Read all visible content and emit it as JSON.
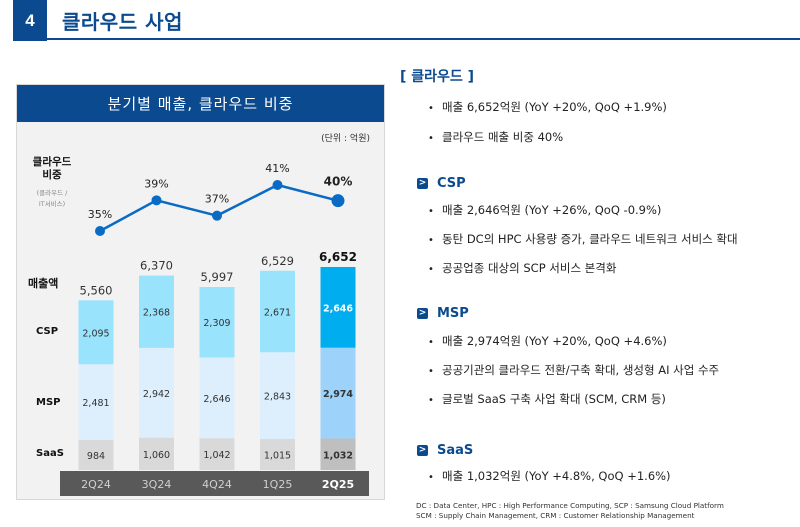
{
  "header": {
    "section_number": "4",
    "title": "클라우드 사업"
  },
  "panel": {
    "title": "분기별 매출, 클라우드 비중",
    "unit": "(단위 : 억원)",
    "ratio_label_line1": "클라우드",
    "ratio_label_line2": "비중",
    "ratio_sub_line1": "(클라우드 /",
    "ratio_sub_line2": "IT서비스)",
    "revenue_label": "매출액",
    "segment_labels": {
      "csp": "CSP",
      "msp": "MSP",
      "saas": "SaaS"
    }
  },
  "chart_data": [
    {
      "type": "line",
      "title": "클라우드 비중 (클라우드 / IT서비스)",
      "categories": [
        "2Q24",
        "3Q24",
        "4Q24",
        "1Q25",
        "2Q25"
      ],
      "values": [
        35,
        39,
        37,
        41,
        40
      ],
      "labels": [
        "35%",
        "39%",
        "37%",
        "41%",
        "40%"
      ],
      "unit": "%",
      "color": "#0a6bc4",
      "highlight_index": 4
    },
    {
      "type": "bar",
      "stacked": true,
      "title": "분기별 매출",
      "unit": "억원",
      "categories": [
        "2Q24",
        "3Q24",
        "4Q24",
        "1Q25",
        "2Q25"
      ],
      "series": [
        {
          "name": "SaaS",
          "values": [
            984,
            1060,
            1042,
            1015,
            1032
          ],
          "labels": [
            "984",
            "1,060",
            "1,042",
            "1,015",
            "1,032"
          ],
          "color": "#d9d9d9",
          "highlight_color": "#bfbfbf"
        },
        {
          "name": "MSP",
          "values": [
            2481,
            2942,
            2646,
            2843,
            2974
          ],
          "labels": [
            "2,481",
            "2,942",
            "2,646",
            "2,843",
            "2,974"
          ],
          "color": "#ddeffd",
          "highlight_color": "#9dd3fb"
        },
        {
          "name": "CSP",
          "values": [
            2095,
            2368,
            2309,
            2671,
            2646
          ],
          "labels": [
            "2,095",
            "2,368",
            "2,309",
            "2,671",
            "2,646"
          ],
          "color": "#99e3fd",
          "highlight_color": "#00aeef"
        }
      ],
      "totals": [
        5560,
        6370,
        5997,
        6529,
        6652
      ],
      "total_labels": [
        "5,560",
        "6,370",
        "5,997",
        "6,529",
        "6,652"
      ],
      "highlight_index": 4,
      "axis_bar_color": "#595959"
    }
  ],
  "summary": {
    "cloud_title": "[ 클라우드 ]",
    "cloud_bullets": [
      "매출 6,652억원 (YoY +20%, QoQ +1.9%)",
      "클라우드 매출 비중 40%"
    ],
    "sections": [
      {
        "title": "CSP",
        "bullets": [
          "매출 2,646억원 (YoY +26%, QoQ -0.9%)",
          "동탄 DC의 HPC 사용량 증가, 클라우드 네트워크 서비스 확대",
          "공공업종 대상의 SCP 서비스 본격화"
        ]
      },
      {
        "title": "MSP",
        "bullets": [
          "매출 2,974억원 (YoY +20%, QoQ +4.6%)",
          "공공기관의 클라우드 전환/구축 확대, 생성형 AI 사업 수주",
          "글로벌 SaaS 구축 사업 확대 (SCM, CRM 등)"
        ]
      },
      {
        "title": "SaaS",
        "bullets": [
          "매출 1,032억원 (YoY +4.8%, QoQ +1.6%)"
        ]
      }
    ],
    "bullet_glyph": "•",
    "arrow_glyph": ">",
    "footnote_line1": "DC : Data Center, HPC : High Performance Computing, SCP : Samsung Cloud Platform",
    "footnote_line2": "SCM : Supply Chain Management, CRM : Customer Relationship Management"
  },
  "colors": {
    "brand_blue": "#0b4a8f",
    "panel_bg": "#f2f2f2"
  }
}
